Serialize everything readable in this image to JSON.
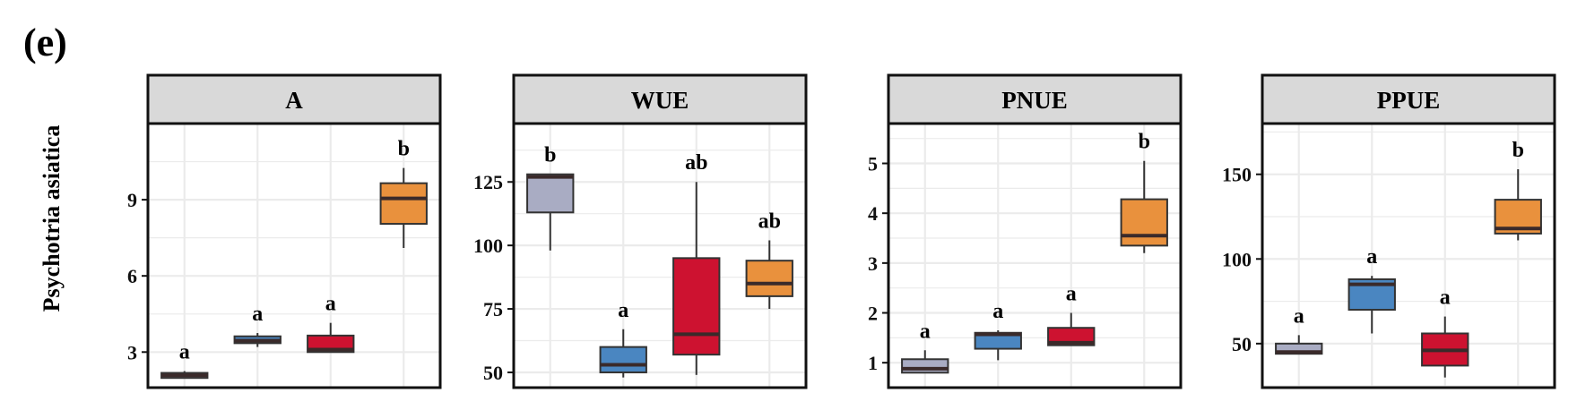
{
  "panel_label": "(e)",
  "row_label": "Psychotria asiatica",
  "colors": {
    "group1": "#a9acc3",
    "group2": "#4a86c1",
    "group3": "#cd1230",
    "group4": "#e9913d",
    "strip_bg": "#d9d9d9",
    "grid": "#ebebeb",
    "frame": "#111111"
  },
  "chart_data": [
    {
      "type": "box",
      "title": "A",
      "ylim": [
        1.6,
        12.0
      ],
      "yticks": [
        3,
        6,
        9
      ],
      "groups": [
        {
          "q1": 1.98,
          "median": 2.08,
          "q3": 2.18,
          "whisker_low": 1.98,
          "whisker_high": 2.25,
          "label": "a",
          "color": "#a9acc3"
        },
        {
          "q1": 3.35,
          "median": 3.45,
          "q3": 3.62,
          "whisker_low": 3.2,
          "whisker_high": 3.75,
          "label": "a",
          "color": "#4a86c1"
        },
        {
          "q1": 3.0,
          "median": 3.1,
          "q3": 3.65,
          "whisker_low": 3.0,
          "whisker_high": 4.15,
          "label": "a",
          "color": "#cd1230"
        },
        {
          "q1": 8.05,
          "median": 9.05,
          "q3": 9.65,
          "whisker_low": 7.1,
          "whisker_high": 10.25,
          "label": "b",
          "color": "#e9913d"
        }
      ]
    },
    {
      "type": "box",
      "title": "WUE",
      "ylim": [
        44,
        148
      ],
      "yticks": [
        50,
        75,
        100,
        125
      ],
      "groups": [
        {
          "q1": 113,
          "median": 127,
          "q3": 128,
          "whisker_low": 98,
          "whisker_high": 128,
          "label": "b",
          "color": "#a9acc3"
        },
        {
          "q1": 50,
          "median": 53,
          "q3": 60,
          "whisker_low": 48,
          "whisker_high": 67,
          "label": "a",
          "color": "#4a86c1"
        },
        {
          "q1": 57,
          "median": 65,
          "q3": 95,
          "whisker_low": 49,
          "whisker_high": 125,
          "label": "ab",
          "color": "#cd1230"
        },
        {
          "q1": 80,
          "median": 85,
          "q3": 94,
          "whisker_low": 75,
          "whisker_high": 102,
          "label": "ab",
          "color": "#e9913d"
        }
      ]
    },
    {
      "type": "box",
      "title": "PNUE",
      "ylim": [
        0.5,
        5.8
      ],
      "yticks": [
        1,
        2,
        3,
        4,
        5
      ],
      "groups": [
        {
          "q1": 0.8,
          "median": 0.88,
          "q3": 1.07,
          "whisker_low": 0.8,
          "whisker_high": 1.25,
          "label": "a",
          "color": "#a9acc3"
        },
        {
          "q1": 1.28,
          "median": 1.57,
          "q3": 1.6,
          "whisker_low": 1.05,
          "whisker_high": 1.65,
          "label": "a",
          "color": "#4a86c1"
        },
        {
          "q1": 1.35,
          "median": 1.4,
          "q3": 1.7,
          "whisker_low": 1.35,
          "whisker_high": 2.0,
          "label": "a",
          "color": "#cd1230"
        },
        {
          "q1": 3.35,
          "median": 3.55,
          "q3": 4.28,
          "whisker_low": 3.2,
          "whisker_high": 5.05,
          "label": "b",
          "color": "#e9913d"
        }
      ]
    },
    {
      "type": "box",
      "title": "PPUE",
      "ylim": [
        24,
        180
      ],
      "yticks": [
        50,
        100,
        150
      ],
      "groups": [
        {
          "q1": 44,
          "median": 45,
          "q3": 50,
          "whisker_low": 44,
          "whisker_high": 55,
          "label": "a",
          "color": "#a9acc3"
        },
        {
          "q1": 70,
          "median": 85,
          "q3": 88,
          "whisker_low": 56,
          "whisker_high": 90,
          "label": "a",
          "color": "#4a86c1"
        },
        {
          "q1": 37,
          "median": 46,
          "q3": 56,
          "whisker_low": 30,
          "whisker_high": 66,
          "label": "a",
          "color": "#cd1230"
        },
        {
          "q1": 115,
          "median": 118,
          "q3": 135,
          "whisker_low": 111,
          "whisker_high": 153,
          "label": "b",
          "color": "#e9913d"
        }
      ]
    }
  ]
}
